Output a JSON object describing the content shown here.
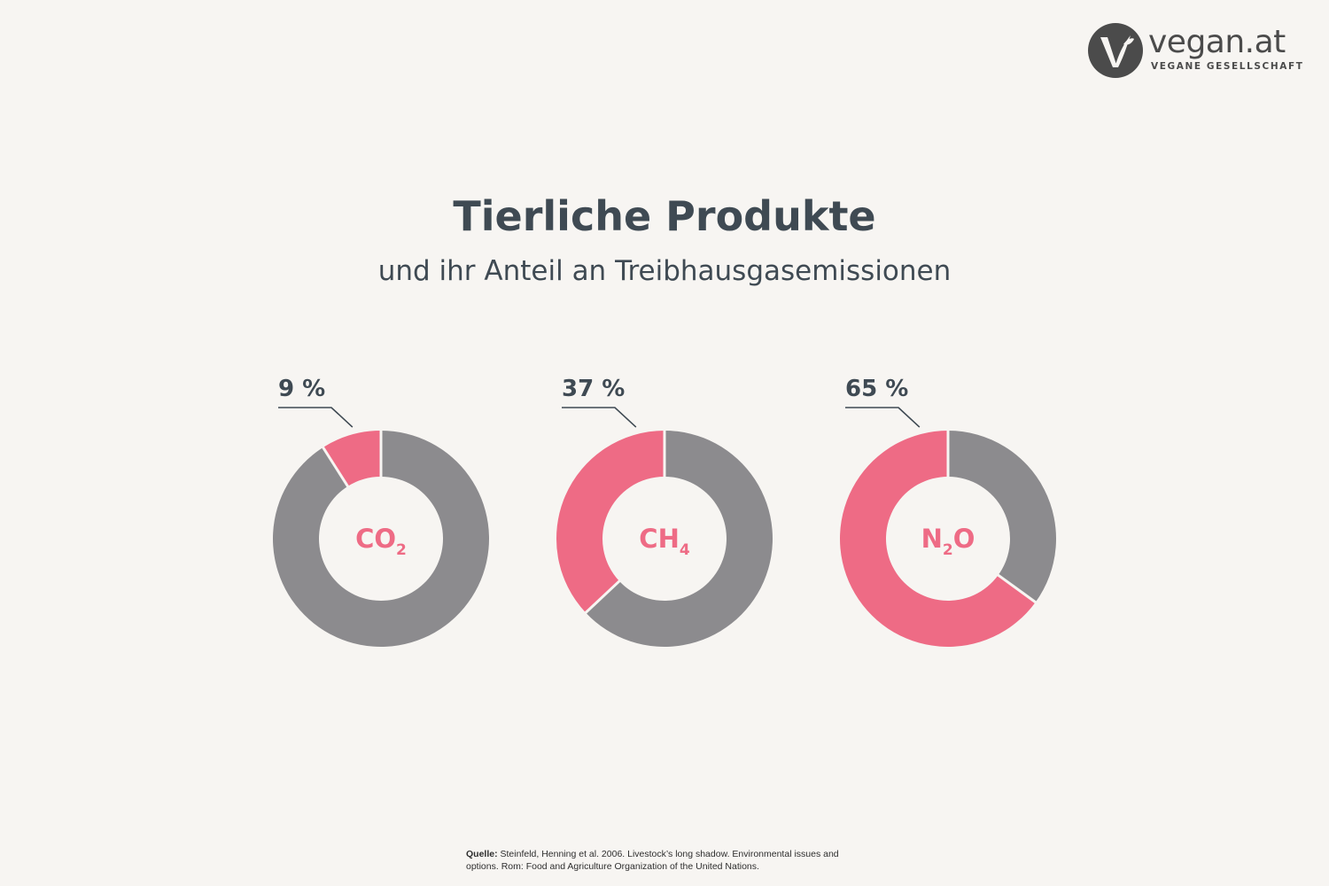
{
  "logo": {
    "name": "vegan.at",
    "tagline": "VEGANE GESELLSCHAFT"
  },
  "title": "Tierliche Produkte",
  "subtitle": "und ihr Anteil an Treibhausgasemissionen",
  "colors": {
    "background": "#f7f5f2",
    "highlight": "#ee6b85",
    "remainder": "#8c8b8e",
    "text": "#3f4a53"
  },
  "chart_data": [
    {
      "type": "pie",
      "variant": "donut",
      "gas": "CO",
      "gas_subscript": "2",
      "label": "9 %",
      "value": 9
    },
    {
      "type": "pie",
      "variant": "donut",
      "gas": "CH",
      "gas_subscript": "4",
      "label": "37 %",
      "value": 37
    },
    {
      "type": "pie",
      "variant": "donut",
      "gas": "N",
      "gas_subscript": "2",
      "gas_suffix": "O",
      "label": "65 %",
      "value": 65
    }
  ],
  "source": {
    "label": "Quelle:",
    "text": " Steinfeld, Henning et al. 2006. Livestock’s long shadow. Environmental issues and options. Rom: Food and Agriculture Organization of the United Nations."
  }
}
